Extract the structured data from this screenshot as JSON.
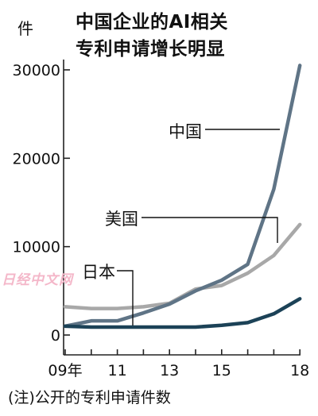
{
  "header": {
    "unit": "件",
    "title_line1": "中国企业的AI相关",
    "title_line2": "专利申请增长明显"
  },
  "footnote": "(注)公开的专利申请件数",
  "watermark": "日经中文网",
  "colors": {
    "china": "#5f7486",
    "usa": "#a8a8a8",
    "japan": "#1c4257",
    "axis": "#222222"
  },
  "chart_data": {
    "type": "line",
    "title": "中国企业的AI相关 专利申请增长明显",
    "ylabel": "件",
    "xlabel": "",
    "x": [
      2009,
      2010,
      2011,
      2012,
      2013,
      2014,
      2015,
      2016,
      2017,
      2018
    ],
    "x_tick_labels": [
      {
        "x": 2009,
        "label": "09年"
      },
      {
        "x": 2011,
        "label": "11"
      },
      {
        "x": 2013,
        "label": "13"
      },
      {
        "x": 2015,
        "label": "15"
      },
      {
        "x": 2018,
        "label": "18"
      }
    ],
    "y_ticks": [
      0,
      10000,
      20000,
      30000
    ],
    "y_tick_labels": [
      "0",
      "10000",
      "20000",
      "30000"
    ],
    "xlim": [
      2009,
      2018
    ],
    "ylim": [
      0,
      31000
    ],
    "grid": false,
    "legend": "direct-labels",
    "series": [
      {
        "name": "中国",
        "color_key": "china",
        "values": [
          1000,
          1600,
          1600,
          2500,
          3500,
          5000,
          6200,
          8000,
          16500,
          30500
        ]
      },
      {
        "name": "美国",
        "color_key": "usa",
        "values": [
          3200,
          3000,
          3000,
          3200,
          3600,
          5200,
          5600,
          7000,
          9000,
          12500
        ]
      },
      {
        "name": "日本",
        "color_key": "japan",
        "values": [
          1000,
          900,
          900,
          900,
          900,
          900,
          1100,
          1400,
          2400,
          4100
        ]
      }
    ],
    "label_anchors": [
      {
        "series": 0,
        "x": 2017.6
      },
      {
        "series": 1,
        "x": 2017.3
      },
      {
        "series": 2,
        "x": 2011.6
      }
    ]
  }
}
